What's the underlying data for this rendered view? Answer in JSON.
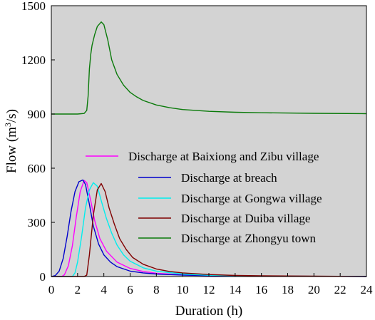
{
  "chart_data": {
    "type": "line",
    "title": "",
    "xlabel": "Duration (h)",
    "ylabel_prefix": "Flow (m",
    "ylabel_sup": "3",
    "ylabel_suffix": "/s)",
    "xlim": [
      0,
      24
    ],
    "ylim": [
      0,
      1500
    ],
    "xticks": [
      0,
      2,
      4,
      6,
      8,
      10,
      12,
      14,
      16,
      18,
      20,
      22,
      24
    ],
    "yticks": [
      0,
      300,
      600,
      900,
      1200,
      1500
    ],
    "grid": false,
    "plot_background": "#d3d3d3",
    "legend": {
      "placement": "inside-left"
    },
    "series": [
      {
        "name": "Discharge at Baixiong and Zibu village",
        "color": "#ff00ff",
        "x": [
          0,
          0.8,
          1.0,
          1.3,
          1.6,
          1.9,
          2.2,
          2.5,
          2.7,
          3.0,
          3.3,
          3.7,
          4.2,
          5.0,
          6.0,
          7.0,
          8.0,
          10.0,
          12.0,
          16.0,
          20.0,
          24.0
        ],
        "y": [
          0,
          0,
          10,
          60,
          170,
          330,
          470,
          532,
          520,
          420,
          310,
          210,
          140,
          80,
          45,
          28,
          18,
          9,
          5,
          2,
          1,
          0
        ]
      },
      {
        "name": "Discharge at breach",
        "color": "#0000cc",
        "x": [
          0,
          0.3,
          0.6,
          0.9,
          1.2,
          1.5,
          1.8,
          2.1,
          2.4,
          2.6,
          2.9,
          3.2,
          3.6,
          4.0,
          4.5,
          5.0,
          6.0,
          7.0,
          8.0,
          10.0,
          12.0,
          16.0,
          20.0,
          24.0
        ],
        "y": [
          0,
          5,
          30,
          100,
          220,
          360,
          470,
          525,
          535,
          510,
          400,
          280,
          180,
          120,
          80,
          55,
          30,
          20,
          14,
          8,
          5,
          2,
          1,
          0
        ]
      },
      {
        "name": "Discharge at Gongwa village",
        "color": "#00eeee",
        "x": [
          0,
          1.6,
          1.8,
          2.0,
          2.3,
          2.6,
          2.9,
          3.2,
          3.5,
          3.8,
          4.2,
          4.6,
          5.0,
          5.5,
          6.0,
          7.0,
          8.0,
          10.0,
          12.0,
          16.0,
          20.0,
          24.0
        ],
        "y": [
          0,
          0,
          20,
          80,
          220,
          380,
          480,
          520,
          500,
          420,
          320,
          240,
          175,
          120,
          85,
          48,
          30,
          14,
          7,
          3,
          1,
          0
        ]
      },
      {
        "name": "Discharge at Duiba village",
        "color": "#800000",
        "x": [
          0,
          2.5,
          2.7,
          2.9,
          3.2,
          3.5,
          3.8,
          4.1,
          4.4,
          4.8,
          5.2,
          5.7,
          6.2,
          7.0,
          8.0,
          9.0,
          10.0,
          12.0,
          14.0,
          16.0,
          20.0,
          24.0
        ],
        "y": [
          0,
          0,
          8,
          120,
          340,
          480,
          515,
          470,
          380,
          290,
          210,
          150,
          105,
          68,
          42,
          28,
          20,
          11,
          6,
          4,
          2,
          0
        ]
      },
      {
        "name": "Discharge at Zhongyu town",
        "color": "#0a7a0a",
        "x": [
          0,
          2.0,
          2.5,
          2.7,
          2.8,
          2.9,
          3.0,
          3.1,
          3.3,
          3.5,
          3.8,
          4.0,
          4.3,
          4.6,
          5.0,
          5.5,
          6.0,
          6.5,
          7.0,
          8.0,
          9.0,
          10.0,
          12.0,
          14.0,
          16.0,
          20.0,
          24.0
        ],
        "y": [
          900,
          900,
          903,
          920,
          1000,
          1150,
          1230,
          1280,
          1340,
          1385,
          1410,
          1395,
          1310,
          1200,
          1120,
          1060,
          1020,
          995,
          975,
          950,
          935,
          925,
          915,
          910,
          907,
          904,
          902
        ]
      }
    ]
  }
}
